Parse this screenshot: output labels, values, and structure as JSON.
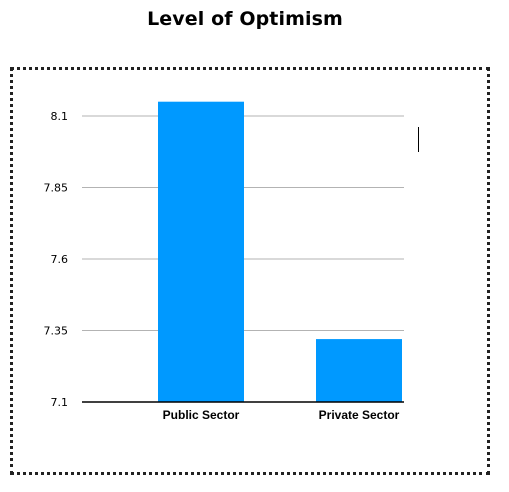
{
  "chart_data": {
    "type": "bar",
    "title": "Level of Optimism",
    "xlabel": "",
    "ylabel": "",
    "categories": [
      "Public Sector",
      "Private Sector"
    ],
    "values": [
      8.15,
      7.32
    ],
    "ylim": [
      7.1,
      8.1
    ],
    "yticks": [
      7.1,
      7.35,
      7.6,
      7.85,
      8.1
    ],
    "ytick_labels": [
      "7.1",
      "7.35",
      "7.6",
      "7.85",
      "8.1"
    ],
    "grid": true,
    "legend": "none",
    "bar_color": "#0099ff",
    "grid_color": "#b3b3b3",
    "axis_color": "#000000"
  }
}
